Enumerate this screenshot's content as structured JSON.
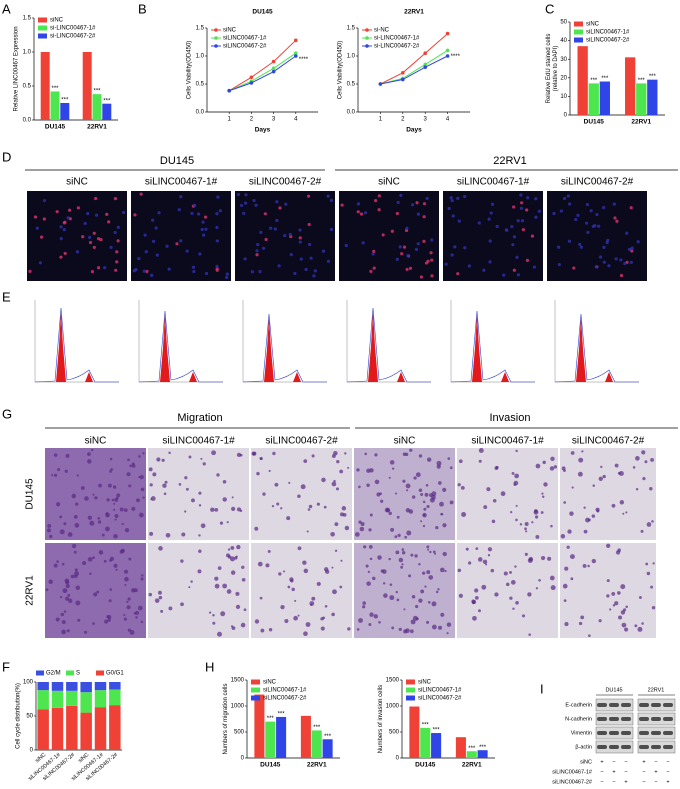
{
  "panel_labels": {
    "A": "A",
    "B": "B",
    "C": "C",
    "D": "D",
    "E": "E",
    "F": "F",
    "G": "G",
    "H": "H",
    "I": "I"
  },
  "chart_data": [
    {
      "type": "bar",
      "y_label": "Relative LINC00467 Expression",
      "categories": [
        "DU145",
        "22RV1"
      ],
      "series": [
        {
          "name": "siNC",
          "color": "#ef4136",
          "values": [
            1.0,
            1.0
          ]
        },
        {
          "name": "si-LINC00467-1#",
          "color": "#4ee64e",
          "values": [
            0.42,
            0.38
          ],
          "stars": [
            "***",
            "***"
          ]
        },
        {
          "name": "si-LINC00467-2#",
          "color": "#2f45e8",
          "values": [
            0.25,
            0.24
          ],
          "stars": [
            "***",
            "***"
          ]
        }
      ],
      "ylim": [
        0,
        1.5
      ],
      "yticks": [
        {
          "value": 0,
          "label": "0.0"
        },
        {
          "value": 0.5,
          "label": "0.5"
        },
        {
          "value": 1,
          "label": "1.0"
        },
        {
          "value": 1.5,
          "label": "1.5"
        }
      ],
      "legend": "upper left"
    },
    {
      "type": "line",
      "title": "DU145",
      "x_label": "Days",
      "y_label": "Cells Viability(OD450)",
      "x": [
        1,
        2,
        3,
        4
      ],
      "series": [
        {
          "name": "siNC",
          "color": "#ef4136",
          "values": [
            0.38,
            0.62,
            0.9,
            1.28
          ]
        },
        {
          "name": "siLINC00467-1#",
          "color": "#4ee64e",
          "values": [
            0.38,
            0.55,
            0.78,
            1.05
          ]
        },
        {
          "name": "siLINC00467-2#",
          "color": "#2f45e8",
          "values": [
            0.38,
            0.52,
            0.72,
            1.0
          ]
        }
      ],
      "xlim": [
        0,
        5
      ],
      "xticks": [
        1,
        2,
        3,
        4
      ],
      "ylim": [
        0,
        1.5
      ],
      "yticks": [
        {
          "value": 0,
          "label": "0.0"
        },
        {
          "value": 0.5,
          "label": "0.5"
        },
        {
          "value": 1,
          "label": "1.0"
        },
        {
          "value": 1.5,
          "label": "1.5"
        }
      ],
      "annotation": "****",
      "legend": "upper left"
    },
    {
      "type": "line",
      "title": "22RV1",
      "x_label": "Days",
      "y_label": "Cells Viability(OD450)",
      "x": [
        1,
        2,
        3,
        4
      ],
      "series": [
        {
          "name": "si-NC",
          "color": "#ef4136",
          "values": [
            0.5,
            0.7,
            1.05,
            1.4
          ]
        },
        {
          "name": "si-LINC00467-1#",
          "color": "#4ee64e",
          "values": [
            0.5,
            0.6,
            0.85,
            1.1
          ]
        },
        {
          "name": "si-LINC00467-2#",
          "color": "#2f45e8",
          "values": [
            0.5,
            0.58,
            0.8,
            1.0
          ]
        }
      ],
      "xlim": [
        0,
        5
      ],
      "xticks": [
        1,
        2,
        3,
        4
      ],
      "ylim": [
        0,
        1.5
      ],
      "yticks": [
        {
          "value": 0,
          "label": "0.0"
        },
        {
          "value": 0.5,
          "label": "0.5"
        },
        {
          "value": 1,
          "label": "1.0"
        },
        {
          "value": 1.5,
          "label": "1.5"
        }
      ],
      "annotation": "****",
      "legend": "upper left"
    },
    {
      "type": "bar",
      "y_label": [
        "Relative EdU stained cells",
        "(relative to DAPI)"
      ],
      "categories": [
        "DU145",
        "22RV1"
      ],
      "series": [
        {
          "name": "siNC",
          "color": "#ef4136",
          "values": [
            37,
            31
          ]
        },
        {
          "name": "siLINC00467-1#",
          "color": "#4ee64e",
          "values": [
            17,
            17
          ],
          "stars": [
            "***",
            "***"
          ]
        },
        {
          "name": "siLINC00467-2#",
          "color": "#2f45e8",
          "values": [
            18,
            19
          ],
          "stars": [
            "***",
            "***"
          ]
        }
      ],
      "ylim": [
        0,
        50
      ],
      "yticks": [
        0,
        10,
        20,
        30,
        40,
        50
      ],
      "legend": "upper left"
    },
    {
      "type": "stacked_bar",
      "y_label": "Cell cycle distribution(%)",
      "categories": [
        "siNC",
        "siLINC00467-1#",
        "siLINC00467-2#",
        "siNC",
        "siLINC00467-1#",
        "siLINC00467-2#"
      ],
      "series": [
        {
          "name": "G2/M",
          "color": "#3b50e0",
          "values": [
            12,
            13,
            13,
            15,
            12,
            11
          ]
        },
        {
          "name": "S",
          "color": "#4ee64e",
          "values": [
            28,
            25,
            22,
            30,
            25,
            23
          ]
        },
        {
          "name": "G0/G1",
          "color": "#ef4136",
          "values": [
            60,
            62,
            65,
            55,
            63,
            66
          ]
        }
      ],
      "ylim": [
        0,
        100
      ],
      "yticks": [
        0,
        50,
        100
      ],
      "legend": "top"
    },
    {
      "type": "bar",
      "y_label": "Numbers of migration cells",
      "categories": [
        "DU145",
        "22RV1"
      ],
      "series": [
        {
          "name": "siNC",
          "color": "#ef4136",
          "values": [
            1220,
            810
          ]
        },
        {
          "name": "siLINC00467-1#",
          "color": "#4ee64e",
          "values": [
            700,
            530
          ],
          "stars": [
            "***",
            "***"
          ]
        },
        {
          "name": "siLINC00467-2#",
          "color": "#2f45e8",
          "values": [
            790,
            360
          ],
          "stars": [
            "***",
            "***"
          ]
        }
      ],
      "ylim": [
        0,
        1500
      ],
      "yticks": [
        0,
        500,
        1000,
        1500
      ],
      "legend": "upper left"
    },
    {
      "type": "bar",
      "y_label": "Numbers of invasion cells",
      "categories": [
        "DU145",
        "22RV1"
      ],
      "series": [
        {
          "name": "siNC",
          "color": "#ef4136",
          "values": [
            990,
            400
          ]
        },
        {
          "name": "siLINC00467-1#",
          "color": "#4ee64e",
          "values": [
            580,
            130
          ],
          "stars": [
            "***",
            "***"
          ]
        },
        {
          "name": "siLINC00467-2#",
          "color": "#2f45e8",
          "values": [
            480,
            150
          ],
          "stars": [
            "***",
            "***"
          ]
        }
      ],
      "ylim": [
        0,
        1500
      ],
      "yticks": [
        0,
        500,
        1000,
        1500
      ],
      "legend": "upper left"
    }
  ],
  "panel_d": {
    "cell_lines": [
      "DU145",
      "22RV1"
    ],
    "columns": [
      "siNC",
      "siLINC00467-1#",
      "siLINC00467-2#"
    ]
  },
  "panel_g": {
    "groups": [
      "Migration",
      "Invasion"
    ],
    "columns": [
      "siNC",
      "siLINC00467-1#",
      "siLINC00467-2#"
    ],
    "rows": [
      "DU145",
      "22RV1"
    ]
  },
  "panel_i": {
    "cell_lines": [
      "DU145",
      "22RV1"
    ],
    "proteins": [
      "E-cadherin",
      "N-cadherin",
      "Vimentin",
      "β-actin"
    ],
    "conditions": [
      {
        "name": "siNC",
        "lanes": [
          "+",
          "−",
          "−",
          "+",
          "−",
          "−"
        ]
      },
      {
        "name": "siLINC00467-1#",
        "lanes": [
          "−",
          "+",
          "−",
          "−",
          "+",
          "−"
        ]
      },
      {
        "name": "siLINC00467-2#",
        "lanes": [
          "−",
          "−",
          "+",
          "−",
          "−",
          "+"
        ]
      }
    ]
  }
}
